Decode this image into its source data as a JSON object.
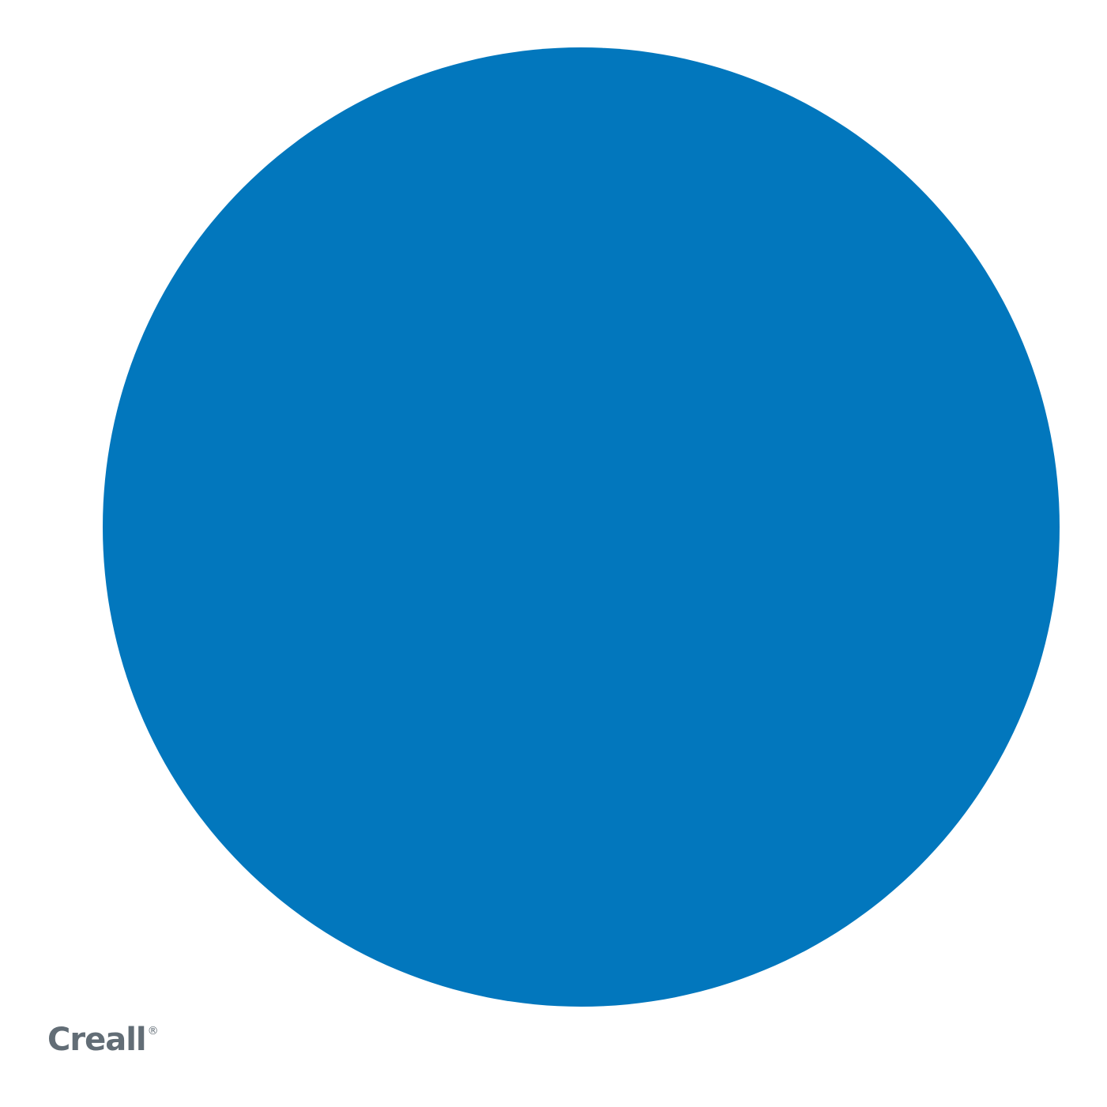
{
  "swatch": {
    "color": "#0277bd",
    "shape": "circle"
  },
  "logo": {
    "text": "Creall",
    "mark": "®",
    "color": "#626d76"
  }
}
